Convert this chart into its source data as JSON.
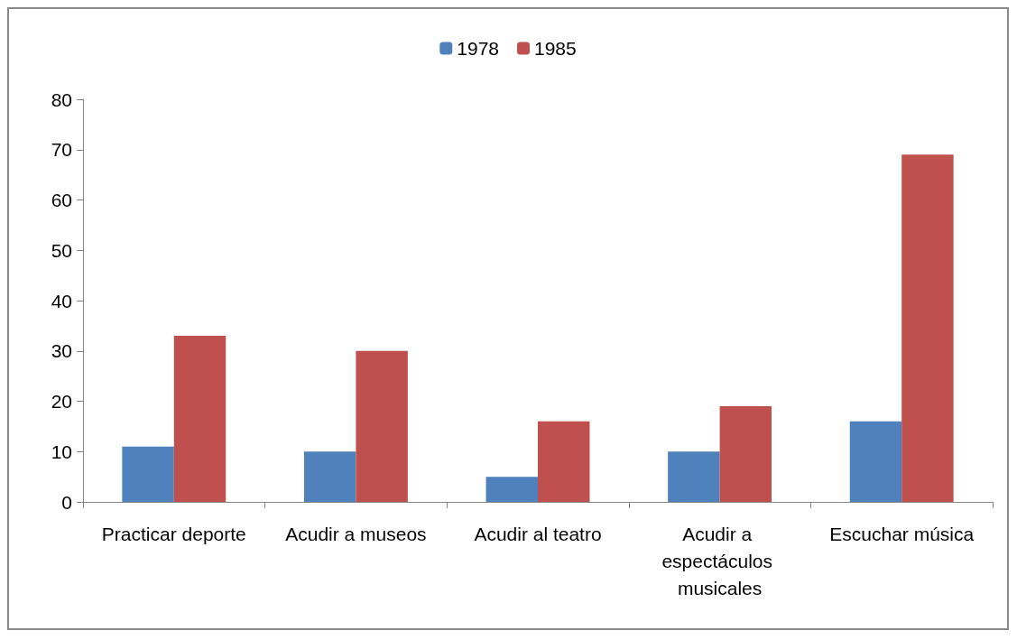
{
  "chart_data": {
    "type": "bar",
    "categories": [
      "Practicar deporte",
      "Acudir a museos",
      "Acudir al teatro",
      "Acudir a espectáculos musicales",
      "Escuchar música"
    ],
    "series": [
      {
        "name": "1978",
        "color": "#4f81bd",
        "values": [
          11,
          10,
          5,
          10,
          16
        ]
      },
      {
        "name": "1985",
        "color": "#c0504d",
        "values": [
          33,
          30,
          16,
          19,
          69
        ]
      }
    ],
    "ylim": [
      0,
      80
    ],
    "yticks": [
      0,
      10,
      20,
      30,
      40,
      50,
      60,
      70,
      80
    ],
    "grid": false,
    "legend": "top"
  }
}
